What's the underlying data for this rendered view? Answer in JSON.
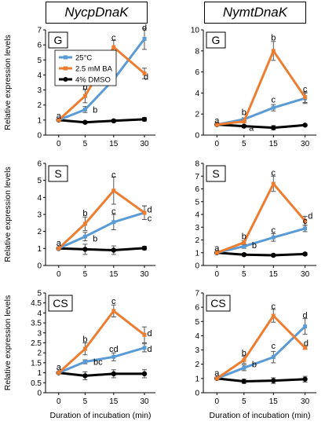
{
  "headers": [
    "NycpDnaK",
    "NymtDnaK"
  ],
  "colors": {
    "c25": "#5b9bd5",
    "ba": "#ed7d31",
    "dmso": "#000000"
  },
  "chart_data": [
    {
      "type": "line",
      "gene": "NycpDnaK",
      "panel_label": "G",
      "x": [
        0,
        5,
        15,
        30
      ],
      "ylim": [
        0,
        7
      ],
      "yticks": [
        0,
        1,
        2,
        3,
        4,
        5,
        6,
        7
      ],
      "ylabel": "Relative expression levels",
      "xlabel": "",
      "legend": [
        "25°C",
        "2.5 mM BA",
        "4% DMSO"
      ],
      "legend_placement": "top-left",
      "series": [
        {
          "name": "25°C",
          "values": [
            1.0,
            1.7,
            3.7,
            6.4
          ],
          "errors": [
            0.05,
            0.2,
            0.4,
            0.7
          ]
        },
        {
          "name": "2.5 mM BA",
          "values": [
            1.0,
            2.6,
            5.85,
            4.1
          ],
          "errors": [
            0.05,
            0.45,
            0.45,
            0.35
          ]
        },
        {
          "name": "4% DMSO",
          "values": [
            1.0,
            0.85,
            0.95,
            1.05
          ],
          "errors": [
            0.05,
            0.08,
            0.08,
            0.12
          ]
        }
      ],
      "annotations": [
        {
          "text": "a",
          "x": 0,
          "y": 1.3
        },
        {
          "text": "b",
          "x": 5,
          "y": 3.2
        },
        {
          "text": "b",
          "x": 8.5,
          "y": 1.7
        },
        {
          "text": "c",
          "x": 15,
          "y": 6.5
        },
        {
          "text": "c",
          "x": 15,
          "y": 4.3
        },
        {
          "text": "d",
          "x": 30,
          "y": 7.15
        },
        {
          "text": "d",
          "x": 30.8,
          "y": 3.9
        }
      ]
    },
    {
      "type": "line",
      "gene": "NymtDnaK",
      "panel_label": "G",
      "x": [
        0,
        5,
        15,
        30
      ],
      "ylim": [
        0,
        10
      ],
      "yticks": [
        0,
        2,
        4,
        6,
        8,
        10
      ],
      "ylabel": "",
      "xlabel": "",
      "series": [
        {
          "name": "25°C",
          "values": [
            1.0,
            1.5,
            2.6,
            3.5
          ],
          "errors": [
            0.05,
            0.15,
            0.3,
            0.5
          ]
        },
        {
          "name": "2.5 mM BA",
          "values": [
            1.0,
            1.3,
            8.0,
            3.6
          ],
          "errors": [
            0.05,
            0.1,
            0.9,
            0.5
          ]
        },
        {
          "name": "4% DMSO",
          "values": [
            1.0,
            0.85,
            0.7,
            0.95
          ],
          "errors": [
            0.05,
            0.1,
            0.2,
            0.1
          ]
        }
      ],
      "annotations": [
        {
          "text": "a",
          "x": 0,
          "y": 1.4
        },
        {
          "text": "b",
          "x": 5,
          "y": 2.2
        },
        {
          "text": "a",
          "x": 7.5,
          "y": 0.7
        },
        {
          "text": "b",
          "x": 15,
          "y": 9.3
        },
        {
          "text": "c",
          "x": 15,
          "y": 3.4
        },
        {
          "text": "c",
          "x": 30,
          "y": 4.4
        }
      ]
    },
    {
      "type": "line",
      "gene": "NycpDnaK",
      "panel_label": "S",
      "x": [
        0,
        5,
        15,
        30
      ],
      "ylim": [
        0,
        6
      ],
      "yticks": [
        0,
        1,
        2,
        3,
        4,
        5,
        6
      ],
      "ylabel": "Relative expression levels",
      "xlabel": "",
      "series": [
        {
          "name": "25°C",
          "values": [
            1.0,
            1.7,
            2.55,
            3.1
          ],
          "errors": [
            0.05,
            0.25,
            0.45,
            0.4
          ]
        },
        {
          "name": "2.5 mM BA",
          "values": [
            1.0,
            2.45,
            4.4,
            3.1
          ],
          "errors": [
            0.05,
            0.4,
            0.8,
            0.4
          ]
        },
        {
          "name": "4% DMSO",
          "values": [
            1.0,
            0.95,
            0.9,
            1.02
          ],
          "errors": [
            0.05,
            0.3,
            0.25,
            0.1
          ]
        }
      ],
      "annotations": [
        {
          "text": "a",
          "x": 0,
          "y": 1.35
        },
        {
          "text": "b",
          "x": 5,
          "y": 3.1
        },
        {
          "text": "b",
          "x": 8.5,
          "y": 1.6
        },
        {
          "text": "c",
          "x": 15,
          "y": 5.35
        },
        {
          "text": "c",
          "x": 15,
          "y": 3.2
        },
        {
          "text": "d",
          "x": 32.5,
          "y": 3.3
        },
        {
          "text": "c",
          "x": 32.5,
          "y": 2.8
        }
      ]
    },
    {
      "type": "line",
      "gene": "NymtDnaK",
      "panel_label": "S",
      "x": [
        0,
        5,
        15,
        30
      ],
      "ylim": [
        0,
        8
      ],
      "yticks": [
        0,
        1,
        2,
        3,
        4,
        5,
        6,
        7,
        8
      ],
      "ylabel": "",
      "xlabel": "",
      "series": [
        {
          "name": "25°C",
          "values": [
            1.0,
            1.5,
            2.2,
            2.9
          ],
          "errors": [
            0.05,
            0.15,
            0.3,
            0.25
          ]
        },
        {
          "name": "2.5 mM BA",
          "values": [
            1.0,
            1.8,
            6.4,
            3.5
          ],
          "errors": [
            0.05,
            0.15,
            0.6,
            0.35
          ]
        },
        {
          "name": "4% DMSO",
          "values": [
            1.0,
            0.85,
            0.8,
            0.9
          ],
          "errors": [
            0.05,
            0.1,
            0.1,
            0.1
          ]
        }
      ],
      "annotations": [
        {
          "text": "a",
          "x": 0,
          "y": 1.4
        },
        {
          "text": "b",
          "x": 5,
          "y": 2.3
        },
        {
          "text": "b",
          "x": 8.5,
          "y": 1.6
        },
        {
          "text": "c",
          "x": 15,
          "y": 7.3
        },
        {
          "text": "c",
          "x": 15,
          "y": 2.8
        },
        {
          "text": "c",
          "x": 30,
          "y": 3.5
        },
        {
          "text": "d",
          "x": 32.5,
          "y": 3.9
        }
      ]
    },
    {
      "type": "line",
      "gene": "NycpDnaK",
      "panel_label": "CS",
      "x": [
        0,
        5,
        15,
        30
      ],
      "ylim": [
        0,
        5
      ],
      "yticks": [
        0,
        0.5,
        1,
        1.5,
        2,
        2.5,
        3,
        3.5,
        4,
        4.5,
        5
      ],
      "ylabel": "Relative expression levels",
      "xlabel": "Duration of incubation (min)",
      "series": [
        {
          "name": "25°C",
          "values": [
            1.0,
            1.55,
            1.8,
            2.25
          ],
          "errors": [
            0.05,
            0.1,
            0.2,
            0.2
          ]
        },
        {
          "name": "2.5 mM BA",
          "values": [
            1.0,
            2.2,
            4.1,
            2.9
          ],
          "errors": [
            0.05,
            0.3,
            0.3,
            0.4
          ]
        },
        {
          "name": "4% DMSO",
          "values": [
            1.0,
            0.85,
            0.95,
            0.95
          ],
          "errors": [
            0.05,
            0.2,
            0.2,
            0.2
          ]
        }
      ],
      "annotations": [
        {
          "text": "a",
          "x": 0,
          "y": 1.3
        },
        {
          "text": "b",
          "x": 5,
          "y": 2.7
        },
        {
          "text": "bc",
          "x": 9.5,
          "y": 1.55
        },
        {
          "text": "c",
          "x": 15,
          "y": 4.6
        },
        {
          "text": "cd",
          "x": 15,
          "y": 2.2
        },
        {
          "text": "d",
          "x": 32.5,
          "y": 3.0
        },
        {
          "text": "d",
          "x": 32.5,
          "y": 2.2
        }
      ]
    },
    {
      "type": "line",
      "gene": "NymtDnaK",
      "panel_label": "CS",
      "x": [
        0,
        5,
        15,
        30
      ],
      "ylim": [
        0,
        7
      ],
      "yticks": [
        0,
        1,
        2,
        3,
        4,
        5,
        6,
        7
      ],
      "ylabel": "",
      "xlabel": "Duration of incubation (min)",
      "series": [
        {
          "name": "25°C",
          "values": [
            1.0,
            1.75,
            2.5,
            4.65
          ],
          "errors": [
            0.05,
            0.2,
            0.4,
            0.55
          ]
        },
        {
          "name": "2.5 mM BA",
          "values": [
            1.0,
            2.3,
            5.4,
            3.15
          ],
          "errors": [
            0.05,
            0.25,
            0.45,
            0.1
          ]
        },
        {
          "name": "4% DMSO",
          "values": [
            1.0,
            0.8,
            0.85,
            0.95
          ],
          "errors": [
            0.05,
            0.15,
            0.2,
            0.2
          ]
        }
      ],
      "annotations": [
        {
          "text": "a",
          "x": 0,
          "y": 1.4
        },
        {
          "text": "b",
          "x": 5,
          "y": 2.8
        },
        {
          "text": "b",
          "x": 8.5,
          "y": 2.0
        },
        {
          "text": "c",
          "x": 15,
          "y": 6.1
        },
        {
          "text": "c",
          "x": 15,
          "y": 3.3
        },
        {
          "text": "d",
          "x": 30,
          "y": 5.45
        },
        {
          "text": "d",
          "x": 30.5,
          "y": 3.5
        }
      ]
    }
  ]
}
